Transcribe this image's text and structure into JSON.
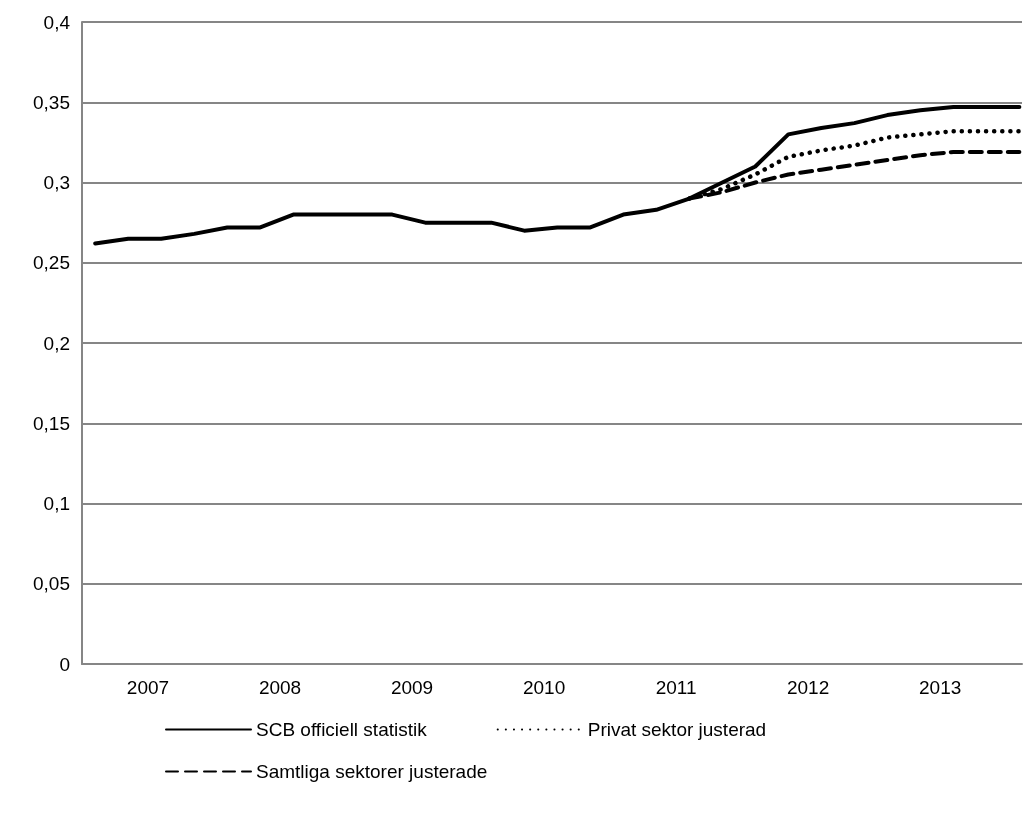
{
  "chart_data": {
    "type": "line",
    "x": [
      2007.1,
      2007.35,
      2007.6,
      2007.85,
      2008.1,
      2008.35,
      2008.6,
      2008.85,
      2009.1,
      2009.35,
      2009.6,
      2009.85,
      2010.1,
      2010.35,
      2010.6,
      2010.85,
      2011.1,
      2011.35,
      2011.6,
      2011.85,
      2012.1,
      2012.35,
      2012.6,
      2012.85,
      2013.1,
      2013.35,
      2013.6,
      2013.85,
      2014.1
    ],
    "xlim": [
      2007,
      2014.12
    ],
    "xticks": [
      {
        "value": 2007.5,
        "label": "2007"
      },
      {
        "value": 2008.5,
        "label": "2008"
      },
      {
        "value": 2009.5,
        "label": "2009"
      },
      {
        "value": 2010.5,
        "label": "2010"
      },
      {
        "value": 2011.5,
        "label": "2011"
      },
      {
        "value": 2012.5,
        "label": "2012"
      },
      {
        "value": 2013.5,
        "label": "2013"
      }
    ],
    "ylim": [
      0,
      0.4
    ],
    "yticks": [
      0,
      {
        "value": 0.05,
        "label": "0,05"
      },
      {
        "value": 0.1,
        "label": "0,1"
      },
      {
        "value": 0.15,
        "label": "0,15"
      },
      {
        "value": 0.2,
        "label": "0,2"
      },
      {
        "value": 0.25,
        "label": "0,25"
      },
      {
        "value": 0.3,
        "label": "0,3"
      },
      {
        "value": 0.35,
        "label": "0,35"
      },
      {
        "value": 0.4,
        "label": "0,4"
      }
    ],
    "grid": "y",
    "legend": "bottom",
    "marker": "none",
    "series": [
      {
        "name": "Samtliga sektorer justerade",
        "color": "#000000",
        "line_style": "dashed",
        "values": [
          null,
          null,
          null,
          null,
          null,
          null,
          null,
          null,
          null,
          null,
          null,
          null,
          null,
          null,
          null,
          null,
          null,
          null,
          0.29,
          0.294,
          0.3,
          0.305,
          0.308,
          0.311,
          0.314,
          0.317,
          0.319,
          0.319,
          0.319
        ]
      },
      {
        "name": "Privat sektor justerad",
        "color": "#000000",
        "line_style": "dotted",
        "values": [
          null,
          null,
          null,
          null,
          null,
          null,
          null,
          null,
          null,
          null,
          null,
          null,
          null,
          null,
          null,
          null,
          null,
          null,
          0.29,
          0.296,
          0.305,
          0.316,
          0.32,
          0.323,
          0.328,
          0.33,
          0.332,
          0.332,
          0.332
        ]
      },
      {
        "name": "SCB officiell statistik",
        "color": "#000000",
        "line_style": "solid",
        "values": [
          0.262,
          0.265,
          0.265,
          0.268,
          0.272,
          0.272,
          0.28,
          0.28,
          0.28,
          0.28,
          0.275,
          0.275,
          0.275,
          0.27,
          0.272,
          0.272,
          0.28,
          0.283,
          0.29,
          0.3,
          0.31,
          0.33,
          0.334,
          0.337,
          0.342,
          0.345,
          0.347,
          0.347,
          0.347
        ]
      }
    ]
  }
}
